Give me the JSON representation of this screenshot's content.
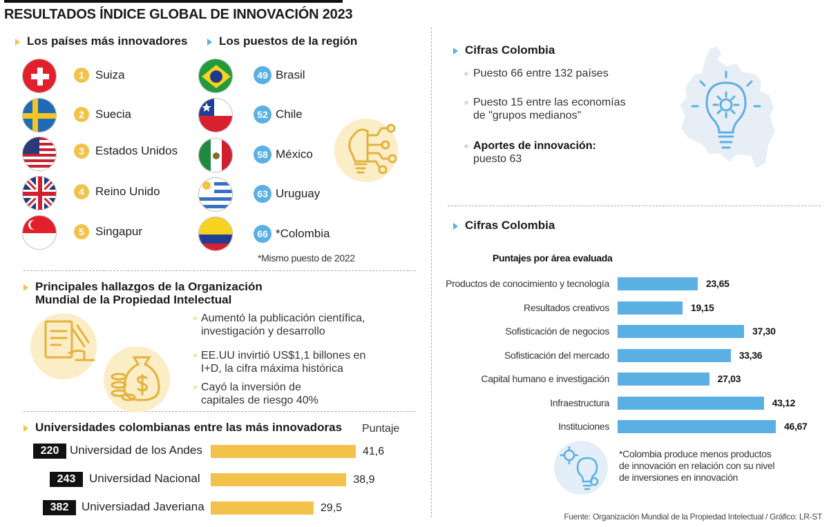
{
  "header": {
    "title": "RESULTADOS ÍNDICE GLOBAL DE INNOVACIÓN 2023"
  },
  "top_innovators": {
    "heading": "Los países más innovadores",
    "items": [
      {
        "rank": "1",
        "country": "Suiza"
      },
      {
        "rank": "2",
        "country": "Suecia"
      },
      {
        "rank": "3",
        "country": "Estados Unidos"
      },
      {
        "rank": "4",
        "country": "Reino Unido"
      },
      {
        "rank": "5",
        "country": "Singapur"
      }
    ]
  },
  "region": {
    "heading": "Los puestos de la región",
    "items": [
      {
        "rank": "49",
        "country": "Brasil"
      },
      {
        "rank": "52",
        "country": "Chile"
      },
      {
        "rank": "58",
        "country": "México"
      },
      {
        "rank": "63",
        "country": "Uruguay"
      },
      {
        "rank": "66",
        "country": "*Colombia"
      }
    ],
    "note": "*Mismo puesto de 2022"
  },
  "findings": {
    "heading_line1": "Principales hallazgos de la Organización",
    "heading_line2": "Mundial de la Propiedad Intelectual",
    "bullets": [
      {
        "line1": "Aumentó la publicación científica,",
        "line2": "investigación y desarrollo"
      },
      {
        "line1": "EE.UU invirtió US$1,1 billones en",
        "line2": "I+D, la cifra máxima histórica"
      },
      {
        "line1": "Cayó la inversión de",
        "line2": "capitales de riesgo 40%"
      }
    ]
  },
  "universities": {
    "heading": "Universidades colombianas entre las más innovadoras",
    "score_label": "Puntaje",
    "items": [
      {
        "rank": "220",
        "name": "Universidad de los Andes",
        "score_text": "41,6",
        "score": 41.6
      },
      {
        "rank": "243",
        "name": "Universidad Nacional",
        "score_text": "38,9",
        "score": 38.9
      },
      {
        "rank": "382",
        "name": "Universiadad Javeriana",
        "score_text": "29,5",
        "score": 29.5
      }
    ]
  },
  "colombia_figures": {
    "heading": "Cifras Colombia",
    "bullet1": "Puesto 66 entre 132 países",
    "bullet2_line1": "Puesto 15 entre las economías",
    "bullet2_line2": "de \"grupos medianos\"",
    "bullet3_line1": "Aportes de innovación:",
    "bullet3_line2": "puesto 63"
  },
  "colombia_scores": {
    "heading": "Cifras Colombia",
    "subheading": "Puntajes por área evaluada",
    "note_line1": "*Colombia produce menos productos",
    "note_line2": "de innovación en relación con su nivel",
    "note_line3": "de inversiones en innovación"
  },
  "footer": {
    "source": "Fuente: Organización Mundial de la Propiedad Intelectual / Gráfico: LR-ST"
  },
  "colors": {
    "yellow": "#f2c24a",
    "blue": "#5ab0e3",
    "dark": "#111111"
  },
  "chart_data": [
    {
      "type": "bar",
      "orientation": "horizontal",
      "title": "Puntajes por área evaluada",
      "categories": [
        "Productos de conocimiento y tecnología",
        "Resultados creativos",
        "Sofisticación de negocios",
        "Sofisticación del mercado",
        "Capital humano e investigación",
        "Infraestructura",
        "Instituciones"
      ],
      "values": [
        23.65,
        19.15,
        37.3,
        33.36,
        27.03,
        43.12,
        46.67
      ],
      "value_labels": [
        "23,65",
        "19,15",
        "37,30",
        "33,36",
        "27,03",
        "43,12",
        "46,67"
      ]
    },
    {
      "type": "bar",
      "orientation": "horizontal",
      "title": "Universidades colombianas entre las más innovadoras",
      "categories": [
        "Universidad de los Andes",
        "Universidad Nacional",
        "Universiadad Javeriana"
      ],
      "values": [
        41.6,
        38.9,
        29.5
      ],
      "value_labels": [
        "41,6",
        "38,9",
        "29,5"
      ]
    }
  ]
}
